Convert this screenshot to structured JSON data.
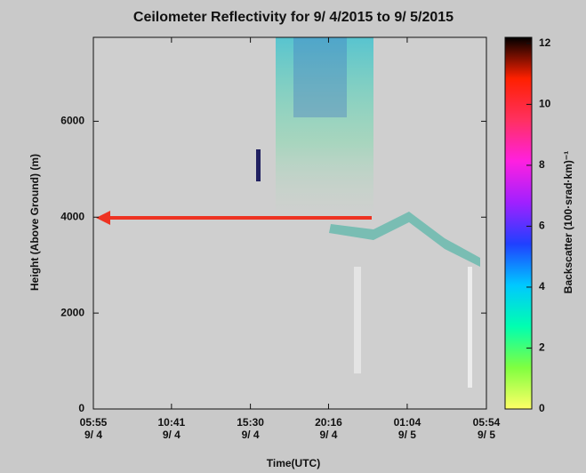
{
  "chart_data": {
    "type": "heatmap",
    "title": "Ceilometer Reflectivity for  9/ 4/2015 to  9/ 5/2015",
    "xlabel": "Time(UTC)",
    "ylabel": "Height (Above Ground) (m)",
    "xlim": [
      0,
      23.983
    ],
    "xticks": [
      {
        "value": 0,
        "label": "05:55\n9/ 4"
      },
      {
        "value": 4.767,
        "label": "10:41\n9/ 4"
      },
      {
        "value": 9.583,
        "label": "15:30\n9/ 4"
      },
      {
        "value": 14.35,
        "label": "20:16\n9/ 4"
      },
      {
        "value": 19.15,
        "label": "01:04\n9/ 5"
      },
      {
        "value": 23.983,
        "label": "05:54\n9/ 5"
      }
    ],
    "ylim": [
      0,
      7750
    ],
    "yticks": [
      0,
      2000,
      4000,
      6000
    ],
    "colorbar": {
      "label": "Backscatter (100·srad·km)⁻¹",
      "lim": [
        0,
        12.2
      ],
      "ticks": [
        0,
        2,
        4,
        6,
        8,
        10,
        12
      ],
      "colormap": [
        "#ffff66",
        "#80ff40",
        "#00ffb0",
        "#00c8ff",
        "#2040ff",
        "#a020ff",
        "#ff20e0",
        "#ff3060",
        "#ff2000",
        "#000000"
      ]
    },
    "grid": false
  }
}
